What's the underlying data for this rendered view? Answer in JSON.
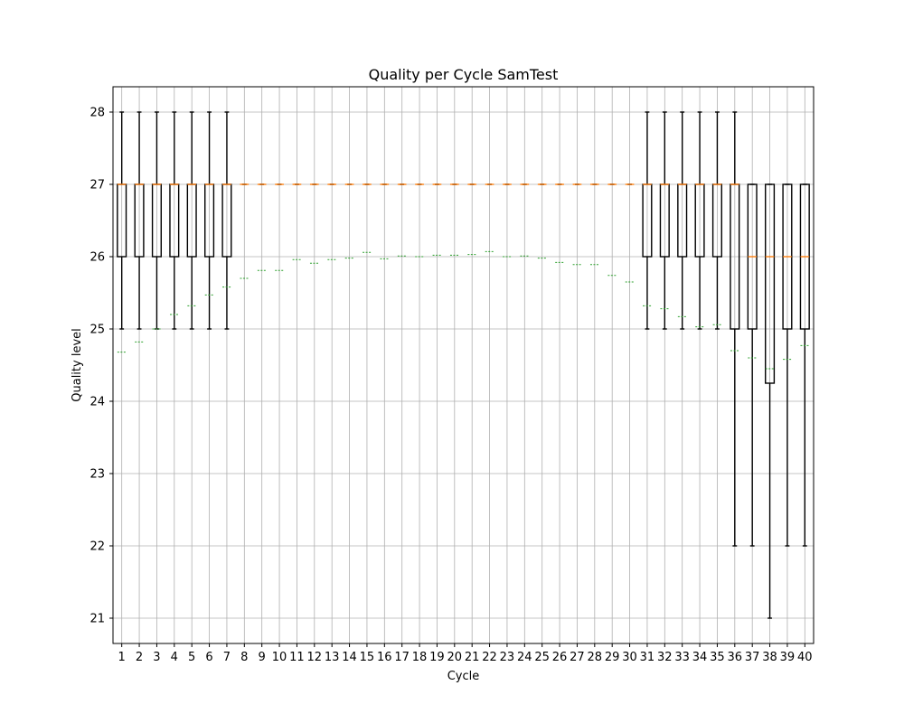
{
  "chart_data": {
    "type": "box",
    "title": "Quality per Cycle SamTest",
    "xlabel": "Cycle",
    "ylabel": "Quality level",
    "ylim": [
      20.65,
      28.35
    ],
    "yticks": [
      21,
      22,
      23,
      24,
      25,
      26,
      27,
      28
    ],
    "grid": true,
    "colors": {
      "box": "#000000",
      "median": "#ff7f0e",
      "mean": "#2ca02c",
      "grid": "#b0b0b0"
    },
    "categories": [
      "1",
      "2",
      "3",
      "4",
      "5",
      "6",
      "7",
      "8",
      "9",
      "10",
      "11",
      "12",
      "13",
      "14",
      "15",
      "16",
      "17",
      "18",
      "19",
      "20",
      "21",
      "22",
      "23",
      "24",
      "25",
      "26",
      "27",
      "28",
      "29",
      "30",
      "31",
      "32",
      "33",
      "34",
      "35",
      "36",
      "37",
      "38",
      "39",
      "40"
    ],
    "boxes": [
      {
        "whislo": 25,
        "q1": 26,
        "med": 27,
        "q3": 27,
        "whishi": 28,
        "mean": 24.68
      },
      {
        "whislo": 25,
        "q1": 26,
        "med": 27,
        "q3": 27,
        "whishi": 28,
        "mean": 24.82
      },
      {
        "whislo": 25,
        "q1": 26,
        "med": 27,
        "q3": 27,
        "whishi": 28,
        "mean": 25.0
      },
      {
        "whislo": 25,
        "q1": 26,
        "med": 27,
        "q3": 27,
        "whishi": 28,
        "mean": 25.2
      },
      {
        "whislo": 25,
        "q1": 26,
        "med": 27,
        "q3": 27,
        "whishi": 28,
        "mean": 25.32
      },
      {
        "whislo": 25,
        "q1": 26,
        "med": 27,
        "q3": 27,
        "whishi": 28,
        "mean": 25.47
      },
      {
        "whislo": 25,
        "q1": 26,
        "med": 27,
        "q3": 27,
        "whishi": 28,
        "mean": 25.58
      },
      {
        "whislo": 27,
        "q1": 27,
        "med": 27,
        "q3": 27,
        "whishi": 27,
        "mean": 25.7
      },
      {
        "whislo": 27,
        "q1": 27,
        "med": 27,
        "q3": 27,
        "whishi": 27,
        "mean": 25.81
      },
      {
        "whislo": 27,
        "q1": 27,
        "med": 27,
        "q3": 27,
        "whishi": 27,
        "mean": 25.81
      },
      {
        "whislo": 27,
        "q1": 27,
        "med": 27,
        "q3": 27,
        "whishi": 27,
        "mean": 25.96
      },
      {
        "whislo": 27,
        "q1": 27,
        "med": 27,
        "q3": 27,
        "whishi": 27,
        "mean": 25.91
      },
      {
        "whislo": 27,
        "q1": 27,
        "med": 27,
        "q3": 27,
        "whishi": 27,
        "mean": 25.96
      },
      {
        "whislo": 27,
        "q1": 27,
        "med": 27,
        "q3": 27,
        "whishi": 27,
        "mean": 25.98
      },
      {
        "whislo": 27,
        "q1": 27,
        "med": 27,
        "q3": 27,
        "whishi": 27,
        "mean": 26.06
      },
      {
        "whislo": 27,
        "q1": 27,
        "med": 27,
        "q3": 27,
        "whishi": 27,
        "mean": 25.97
      },
      {
        "whislo": 27,
        "q1": 27,
        "med": 27,
        "q3": 27,
        "whishi": 27,
        "mean": 26.01
      },
      {
        "whislo": 27,
        "q1": 27,
        "med": 27,
        "q3": 27,
        "whishi": 27,
        "mean": 26.0
      },
      {
        "whislo": 27,
        "q1": 27,
        "med": 27,
        "q3": 27,
        "whishi": 27,
        "mean": 26.02
      },
      {
        "whislo": 27,
        "q1": 27,
        "med": 27,
        "q3": 27,
        "whishi": 27,
        "mean": 26.02
      },
      {
        "whislo": 27,
        "q1": 27,
        "med": 27,
        "q3": 27,
        "whishi": 27,
        "mean": 26.03
      },
      {
        "whislo": 27,
        "q1": 27,
        "med": 27,
        "q3": 27,
        "whishi": 27,
        "mean": 26.07
      },
      {
        "whislo": 27,
        "q1": 27,
        "med": 27,
        "q3": 27,
        "whishi": 27,
        "mean": 26.0
      },
      {
        "whislo": 27,
        "q1": 27,
        "med": 27,
        "q3": 27,
        "whishi": 27,
        "mean": 26.01
      },
      {
        "whislo": 27,
        "q1": 27,
        "med": 27,
        "q3": 27,
        "whishi": 27,
        "mean": 25.98
      },
      {
        "whislo": 27,
        "q1": 27,
        "med": 27,
        "q3": 27,
        "whishi": 27,
        "mean": 25.92
      },
      {
        "whislo": 27,
        "q1": 27,
        "med": 27,
        "q3": 27,
        "whishi": 27,
        "mean": 25.89
      },
      {
        "whislo": 27,
        "q1": 27,
        "med": 27,
        "q3": 27,
        "whishi": 27,
        "mean": 25.89
      },
      {
        "whislo": 27,
        "q1": 27,
        "med": 27,
        "q3": 27,
        "whishi": 27,
        "mean": 25.74
      },
      {
        "whislo": 27,
        "q1": 27,
        "med": 27,
        "q3": 27,
        "whishi": 27,
        "mean": 25.65
      },
      {
        "whislo": 25,
        "q1": 26,
        "med": 27,
        "q3": 27,
        "whishi": 28,
        "mean": 25.32
      },
      {
        "whislo": 25,
        "q1": 26,
        "med": 27,
        "q3": 27,
        "whishi": 28,
        "mean": 25.28
      },
      {
        "whislo": 25,
        "q1": 26,
        "med": 27,
        "q3": 27,
        "whishi": 28,
        "mean": 25.17
      },
      {
        "whislo": 25,
        "q1": 26,
        "med": 27,
        "q3": 27,
        "whishi": 28,
        "mean": 25.03
      },
      {
        "whislo": 25,
        "q1": 26,
        "med": 27,
        "q3": 27,
        "whishi": 28,
        "mean": 25.06
      },
      {
        "whislo": 22,
        "q1": 25,
        "med": 27,
        "q3": 27,
        "whishi": 28,
        "mean": 24.7
      },
      {
        "whislo": 22,
        "q1": 25,
        "med": 26,
        "q3": 27,
        "whishi": 27,
        "mean": 24.6
      },
      {
        "whislo": 21,
        "q1": 24.25,
        "med": 26,
        "q3": 27,
        "whishi": 27,
        "mean": 24.45
      },
      {
        "whislo": 22,
        "q1": 25,
        "med": 26,
        "q3": 27,
        "whishi": 27,
        "mean": 24.58
      },
      {
        "whislo": 22,
        "q1": 25,
        "med": 26,
        "q3": 27,
        "whishi": 27,
        "mean": 24.77
      }
    ]
  }
}
